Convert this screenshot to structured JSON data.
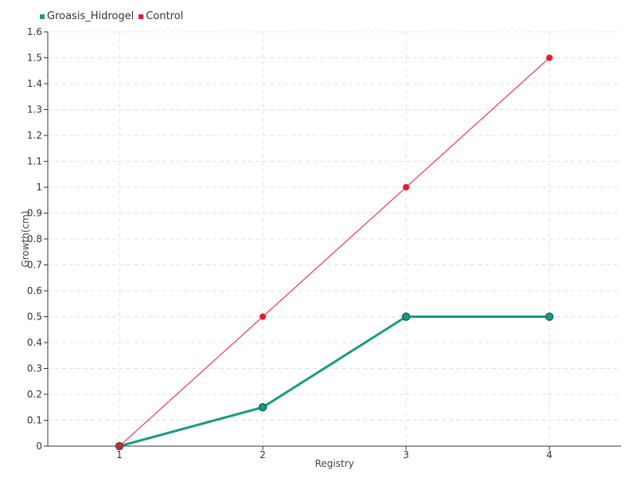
{
  "chart_data": {
    "type": "line",
    "title": "",
    "xlabel": "Registry",
    "ylabel": "Growth(cm)",
    "categories": [
      "1",
      "2",
      "3",
      "4"
    ],
    "y_ticks": [
      "0",
      "0.1",
      "0.2",
      "0.3",
      "0.4",
      "0.5",
      "0.6",
      "0.7",
      "0.8",
      "0.9",
      "1",
      "1.1",
      "1.2",
      "1.3",
      "1.4",
      "1.5",
      "1.6"
    ],
    "ylim": [
      0,
      1.6
    ],
    "grid": true,
    "legend_position": "top-left",
    "series": [
      {
        "name": "Groasis_Hidrogel",
        "color": "#1a9b80",
        "values": [
          0,
          0.15,
          0.5,
          0.5
        ]
      },
      {
        "name": "Control",
        "color": "#e8192c",
        "values": [
          0,
          0.5,
          1,
          1.5
        ]
      }
    ]
  }
}
